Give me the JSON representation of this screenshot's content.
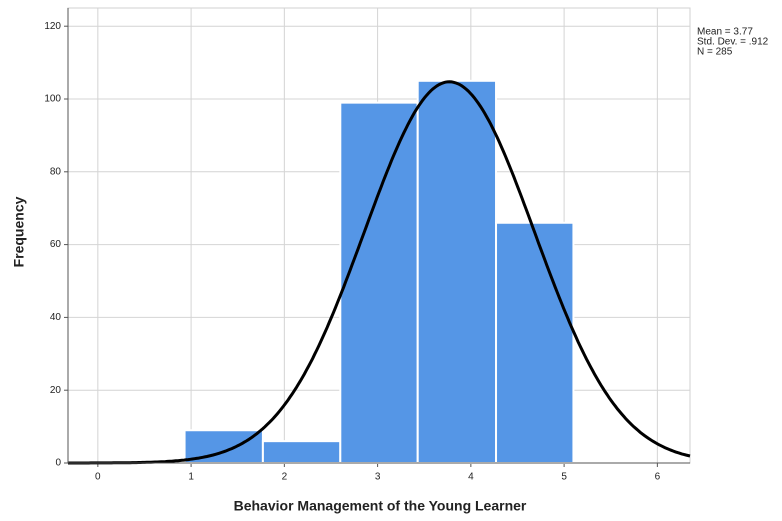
{
  "chart_data": {
    "type": "histogram",
    "x_label": "Behavior Management of the Young Learner",
    "y_label": "Frequency",
    "bins": [
      0.93,
      1.77,
      2.6,
      3.43,
      4.27,
      5.1
    ],
    "values": [
      9,
      6,
      99,
      105,
      66
    ],
    "color": "#5596e6",
    "xlim": [
      -0.32,
      6.35
    ],
    "xticks": [
      0,
      1,
      2,
      3,
      4,
      5,
      6
    ],
    "ylim": [
      0,
      125
    ],
    "yticks": [
      0,
      20,
      40,
      60,
      80,
      100,
      120
    ],
    "grid": true,
    "normal_curve": {
      "mean": 3.77,
      "sd": 0.912,
      "n": 285,
      "color": "#000000"
    },
    "annotations": [
      "Mean = 3.77",
      "Std. Dev. = .912",
      "N = 285"
    ]
  }
}
